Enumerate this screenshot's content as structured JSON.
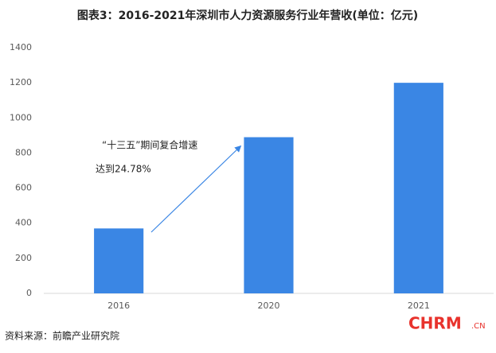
{
  "chart_data": {
    "type": "bar",
    "title": "图表3：2016-2021年深圳市人力资源服务行业年营收(单位：亿元)",
    "categories": [
      "2016",
      "2020",
      "2021"
    ],
    "values": [
      370,
      890,
      1200
    ],
    "color": "#3a86e4",
    "ylim": [
      0,
      1400
    ],
    "yticks": [
      0,
      200,
      400,
      600,
      800,
      1000,
      1200,
      1400
    ],
    "grid": false,
    "annotations": [
      "“十三五”期间复合增速",
      "达到24.78%"
    ],
    "source": "资料来源：前瞻产业研究院",
    "logo": "CHRM",
    "logo_suffix": ".CN"
  }
}
